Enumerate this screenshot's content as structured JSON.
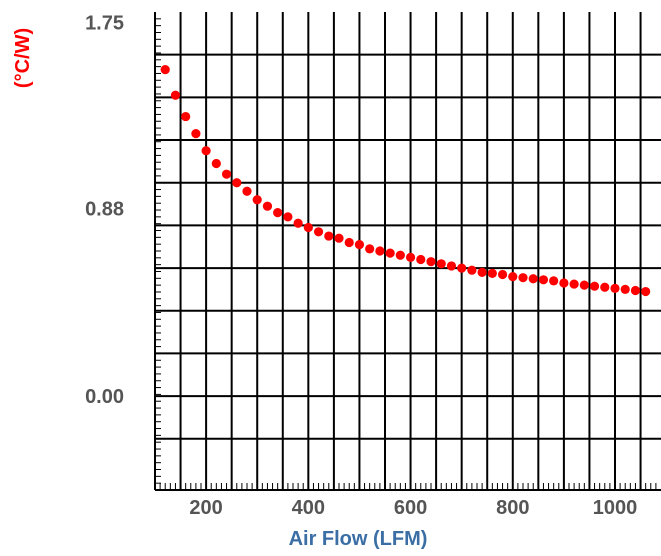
{
  "chart_data": {
    "type": "scatter",
    "title": "",
    "xlabel": "Air Flow (LFM)",
    "ylabel": "(°C/W)",
    "xlim": [
      100,
      1090
    ],
    "ylim": [
      -0.44,
      1.8
    ],
    "x_ticks": [
      200,
      400,
      600,
      800,
      1000
    ],
    "x_tick_labels": [
      "200",
      "400",
      "600",
      "800",
      "1000"
    ],
    "y_ticks": [
      0.0,
      0.88,
      1.75
    ],
    "y_tick_labels": [
      "0.00",
      "0.88",
      "1.75"
    ],
    "grid": true,
    "legend": "none",
    "colors": {
      "series": "#ff0000",
      "xlabel": "#3a6ea5",
      "ylabel": "#ff0000",
      "ticks": "#555555",
      "grid": "#000000"
    },
    "series": [
      {
        "x": [
          120,
          140,
          160,
          180,
          200,
          220,
          240,
          260,
          280,
          300,
          320,
          340,
          360,
          380,
          400,
          420,
          440,
          460,
          480,
          500,
          520,
          540,
          560,
          580,
          600,
          620,
          640,
          660,
          680,
          700,
          720,
          740,
          760,
          780,
          800,
          820,
          840,
          860,
          880,
          900,
          920,
          940,
          960,
          980,
          1000,
          1020,
          1040,
          1060
        ],
        "y": [
          1.53,
          1.41,
          1.31,
          1.23,
          1.15,
          1.09,
          1.04,
          1.0,
          0.96,
          0.92,
          0.89,
          0.86,
          0.84,
          0.81,
          0.79,
          0.77,
          0.75,
          0.74,
          0.72,
          0.71,
          0.69,
          0.68,
          0.67,
          0.66,
          0.65,
          0.64,
          0.63,
          0.62,
          0.61,
          0.6,
          0.59,
          0.58,
          0.575,
          0.57,
          0.56,
          0.555,
          0.55,
          0.545,
          0.54,
          0.53,
          0.525,
          0.52,
          0.515,
          0.51,
          0.505,
          0.5,
          0.495,
          0.49
        ]
      }
    ]
  }
}
